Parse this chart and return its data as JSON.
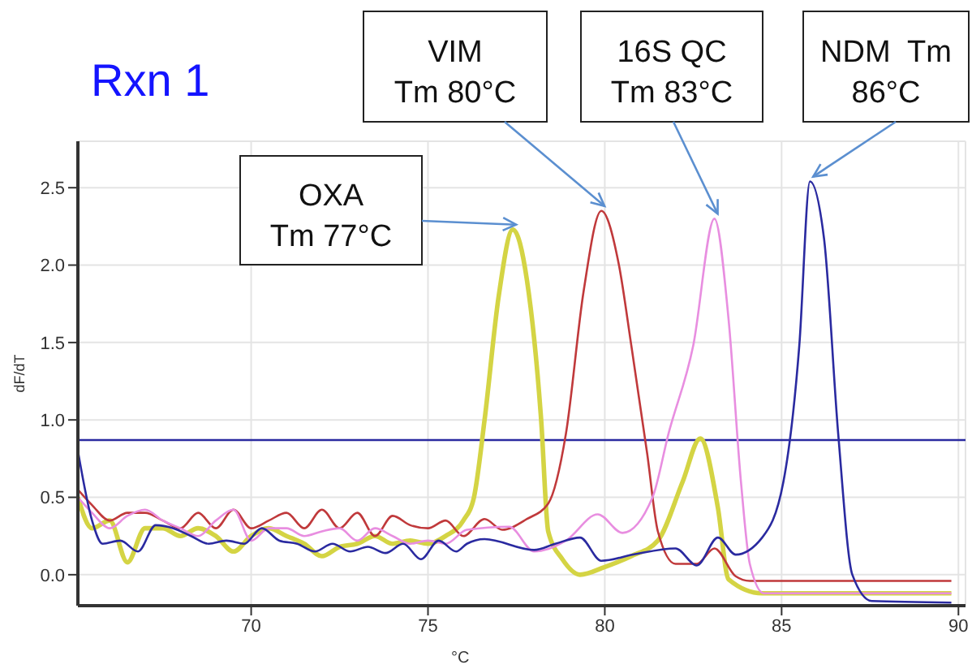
{
  "chart_data": {
    "type": "line",
    "title": "Rxn 1",
    "xlabel": "°C",
    "ylabel": "dF/dT",
    "xlim": [
      65.1,
      90.2
    ],
    "ylim": [
      -0.2,
      2.8
    ],
    "xticks": [
      70,
      75,
      80,
      85,
      90
    ],
    "yticks": [
      {
        "value": 0,
        "label": "0.0"
      },
      {
        "value": 0.5,
        "label": "0.5"
      },
      {
        "value": 1,
        "label": "1.0"
      },
      {
        "value": 1.5,
        "label": "1.5"
      },
      {
        "value": 2,
        "label": "2.0"
      },
      {
        "value": 2.5,
        "label": "2.5"
      }
    ],
    "grid": true,
    "marker": "none",
    "line_style": "solid",
    "ref_lines": [
      {
        "axis": "y",
        "value": 0.87,
        "color": "#2a2aa0"
      }
    ],
    "annotations": [
      {
        "text": "OXA\nTm 77°C",
        "x": 77.4,
        "y": 2.23
      },
      {
        "text": "VIM\nTm 80°C",
        "x": 79.9,
        "y": 2.35
      },
      {
        "text": "16S QC\nTm 83°C",
        "x": 83.1,
        "y": 2.3
      },
      {
        "text": "NDM  Tm\n86°C",
        "x": 85.8,
        "y": 2.54
      }
    ],
    "series": [
      {
        "color": "#d4d444",
        "x": [
          65.1,
          65.5,
          66,
          66.5,
          67,
          67.5,
          68,
          68.5,
          69,
          69.5,
          70,
          70.5,
          71,
          71.5,
          72,
          72.5,
          73,
          73.5,
          74,
          74.5,
          75,
          75.5,
          76,
          76.3,
          76.6,
          77,
          77.4,
          77.8,
          78.2,
          78.4,
          78.8,
          79.3,
          80,
          80.75,
          81.5,
          82.2,
          82.7,
          83.2,
          83.5,
          84.45,
          89.8
        ],
        "values": [
          0.5,
          0.3,
          0.35,
          0.08,
          0.3,
          0.3,
          0.25,
          0.3,
          0.25,
          0.15,
          0.25,
          0.3,
          0.25,
          0.2,
          0.12,
          0.18,
          0.2,
          0.25,
          0.2,
          0.22,
          0.2,
          0.25,
          0.35,
          0.5,
          1.0,
          1.8,
          2.23,
          1.9,
          1.0,
          0.28,
          0.1,
          0.0,
          0.05,
          0.12,
          0.22,
          0.6,
          0.88,
          0.43,
          -0.03,
          -0.12,
          -0.12
        ]
      },
      {
        "color": "#c0393b",
        "x": [
          65.1,
          65.5,
          66,
          66.5,
          67,
          67.5,
          68,
          68.5,
          69,
          69.5,
          70,
          70.5,
          71,
          71.5,
          72,
          72.5,
          73,
          73.5,
          74,
          74.5,
          75,
          75.5,
          76,
          76.6,
          77.1,
          77.8,
          78.4,
          78.9,
          79.4,
          79.9,
          80.4,
          80.75,
          81.2,
          81.5,
          82,
          82.6,
          83.1,
          83.7,
          84.1,
          89.8
        ],
        "values": [
          0.55,
          0.45,
          0.35,
          0.4,
          0.4,
          0.35,
          0.3,
          0.4,
          0.3,
          0.42,
          0.3,
          0.35,
          0.4,
          0.3,
          0.42,
          0.3,
          0.4,
          0.25,
          0.38,
          0.32,
          0.3,
          0.35,
          0.25,
          0.36,
          0.29,
          0.36,
          0.46,
          0.91,
          1.83,
          2.35,
          2.0,
          1.48,
          0.78,
          0.28,
          0.07,
          0.07,
          0.17,
          -0.01,
          -0.04,
          -0.04
        ]
      },
      {
        "color": "#e88ee0",
        "x": [
          65.1,
          65.5,
          66,
          66.5,
          67,
          67.5,
          68,
          68.5,
          69,
          69.5,
          70,
          70.5,
          71,
          71.5,
          72,
          72.5,
          73,
          73.5,
          74,
          74.5,
          75,
          75.5,
          76.1,
          77.3,
          78,
          78.9,
          79.8,
          80.5,
          81.35,
          81.8,
          82.5,
          83.1,
          83.5,
          83.85,
          84.1,
          84.5,
          89.8
        ],
        "values": [
          0.5,
          0.4,
          0.3,
          0.38,
          0.42,
          0.35,
          0.3,
          0.25,
          0.35,
          0.42,
          0.22,
          0.3,
          0.3,
          0.25,
          0.28,
          0.3,
          0.22,
          0.3,
          0.25,
          0.2,
          0.22,
          0.2,
          0.29,
          0.31,
          0.15,
          0.22,
          0.39,
          0.27,
          0.5,
          0.91,
          1.48,
          2.3,
          1.65,
          0.6,
          0.07,
          -0.12,
          -0.12
        ]
      },
      {
        "color": "#2a2aa0",
        "x": [
          65.1,
          65.5,
          65.8,
          66.3,
          66.8,
          67.3,
          67.8,
          68.3,
          68.8,
          69.3,
          69.8,
          70.3,
          70.8,
          71.3,
          71.8,
          72.3,
          72.8,
          73.3,
          73.8,
          74.3,
          74.8,
          75.3,
          75.8,
          76.1,
          76.6,
          78,
          78.6,
          79.3,
          79.9,
          80.8,
          82,
          82.6,
          83.2,
          83.7,
          84.45,
          85.05,
          85.5,
          85.8,
          86.2,
          86.6,
          87,
          87.55,
          89.8
        ],
        "values": [
          0.8,
          0.35,
          0.2,
          0.22,
          0.15,
          0.32,
          0.3,
          0.25,
          0.2,
          0.22,
          0.2,
          0.3,
          0.22,
          0.2,
          0.15,
          0.2,
          0.15,
          0.18,
          0.14,
          0.2,
          0.1,
          0.22,
          0.15,
          0.2,
          0.23,
          0.16,
          0.2,
          0.24,
          0.09,
          0.13,
          0.17,
          0.06,
          0.24,
          0.13,
          0.24,
          0.6,
          1.48,
          2.54,
          2.17,
          0.91,
          0.0,
          -0.17,
          -0.18
        ]
      }
    ]
  }
}
